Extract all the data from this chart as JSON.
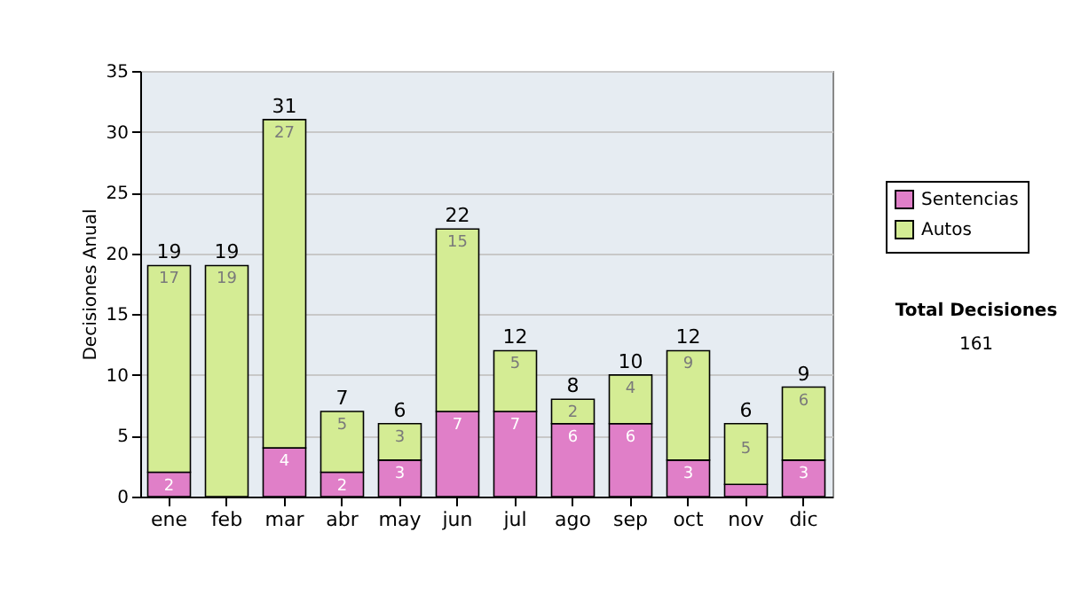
{
  "chart_data": {
    "type": "bar",
    "ylabel": "Decisiones Anual",
    "categories": [
      "ene",
      "feb",
      "mar",
      "abr",
      "may",
      "jun",
      "jul",
      "ago",
      "sep",
      "oct",
      "nov",
      "dic"
    ],
    "series": [
      {
        "name": "Sentencias",
        "color": "#e07fc8",
        "values": [
          2,
          0,
          4,
          2,
          3,
          7,
          7,
          6,
          6,
          3,
          1,
          3
        ],
        "value_labels": [
          "2",
          null,
          "4",
          "2",
          "3",
          "7",
          "7",
          "6",
          "6",
          "3",
          null,
          "3"
        ]
      },
      {
        "name": "Autos",
        "color": "#d4ec94",
        "values": [
          17,
          19,
          27,
          5,
          3,
          15,
          5,
          2,
          4,
          9,
          5,
          6
        ],
        "value_labels": [
          "17",
          "19",
          "27",
          "5",
          "3",
          "15",
          "5",
          "2",
          "4",
          "9",
          "5",
          "6"
        ]
      }
    ],
    "stacked": true,
    "totals": [
      "19",
      "19",
      "31",
      "7",
      "6",
      "22",
      "12",
      "8",
      "10",
      "12",
      "6",
      "9"
    ],
    "ylim": [
      0,
      35
    ],
    "yticks": [
      0,
      5,
      10,
      15,
      20,
      25,
      30,
      35
    ],
    "grid": "y",
    "legend": "right",
    "annotations": [
      "Total Decisiones",
      "161"
    ]
  }
}
